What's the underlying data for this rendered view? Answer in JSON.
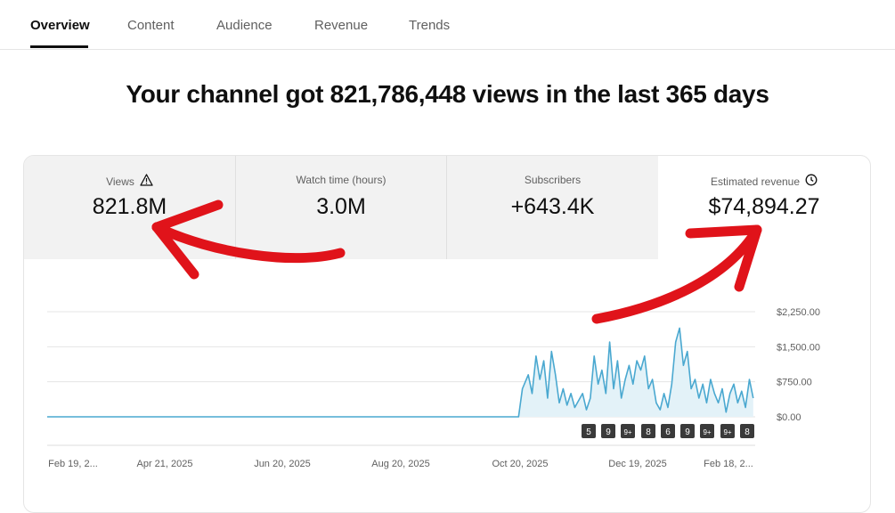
{
  "tabs": [
    {
      "label": "Overview"
    },
    {
      "label": "Content"
    },
    {
      "label": "Audience"
    },
    {
      "label": "Revenue"
    },
    {
      "label": "Trends"
    }
  ],
  "headline": "Your channel got 821,786,448 views in the last 365 days",
  "metrics": [
    {
      "label": "Views",
      "value": "821.8M",
      "icon": "warning-icon"
    },
    {
      "label": "Watch time (hours)",
      "value": "3.0M"
    },
    {
      "label": "Subscribers",
      "value": "+643.4K"
    },
    {
      "label": "Estimated revenue",
      "value": "$74,894.27",
      "icon": "clock-icon"
    }
  ],
  "colors": {
    "series": "#4aa8d0",
    "fill": "#e3f2f8",
    "arrow": "#e0131a"
  },
  "chart_data": {
    "type": "area",
    "x_tick_labels": [
      "Feb 19, 2...",
      "Apr 21, 2025",
      "Jun 20, 2025",
      "Aug 20, 2025",
      "Oct 20, 2025",
      "Dec 19, 2025",
      "Feb 18, 2..."
    ],
    "y_tick_labels": [
      "$0.00",
      "$750.00",
      "$1,500.00",
      "$2,250.00"
    ],
    "ylim": [
      0,
      2250
    ],
    "grid": true,
    "series": [
      {
        "x_day": [
          0,
          243,
          245,
          248,
          250,
          252,
          254,
          256,
          258,
          260,
          262,
          264,
          266,
          268,
          270,
          272,
          274,
          276,
          278,
          280,
          282,
          284,
          286,
          288,
          290,
          292,
          294,
          296,
          298,
          300,
          302,
          304,
          306,
          308,
          310,
          312,
          314,
          316,
          318,
          320,
          322,
          324,
          326,
          328,
          330,
          332,
          334,
          336,
          338,
          340,
          342,
          344,
          346,
          348,
          350,
          352,
          354,
          356,
          358,
          360,
          362,
          364
        ],
        "values": [
          0,
          0,
          600,
          900,
          500,
          1300,
          800,
          1200,
          400,
          1400,
          900,
          300,
          600,
          250,
          500,
          200,
          350,
          500,
          150,
          400,
          1300,
          700,
          1000,
          500,
          1600,
          600,
          1200,
          400,
          800,
          1100,
          700,
          1200,
          1000,
          1300,
          600,
          800,
          300,
          150,
          500,
          200,
          700,
          1600,
          1900,
          1100,
          1400,
          600,
          800,
          400,
          700,
          300,
          800,
          500,
          300,
          600,
          100,
          500,
          700,
          300,
          550,
          200,
          800,
          400
        ]
      }
    ],
    "markers": [
      "5",
      "9",
      "9+",
      "8",
      "6",
      "9",
      "9+",
      "9+",
      "8"
    ]
  },
  "annotations": {
    "arrows": 2
  }
}
